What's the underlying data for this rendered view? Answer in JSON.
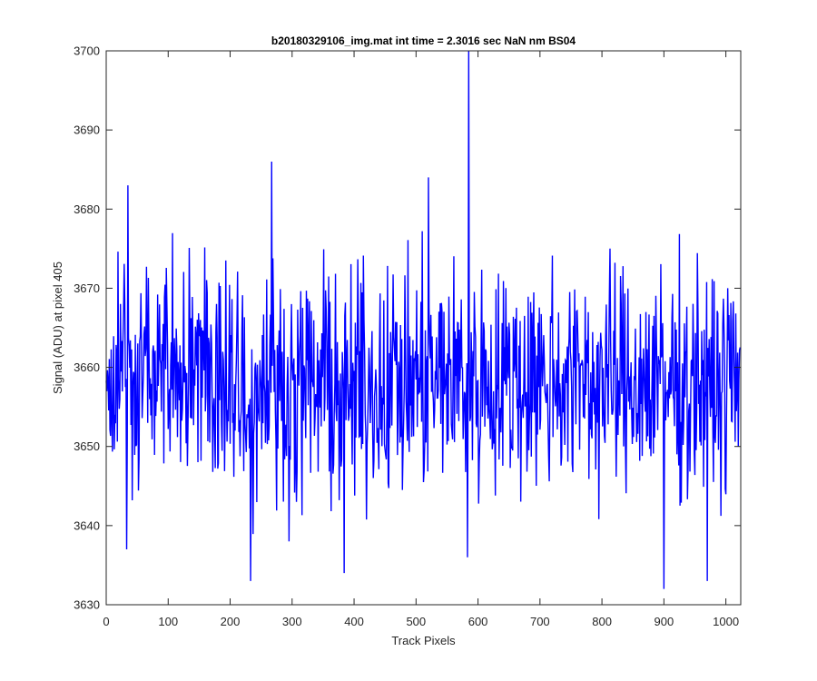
{
  "chart_data": {
    "type": "line",
    "title": "b20180329106_img.mat int time = 2.3016 sec  NaN nm BS04",
    "xlabel": "Track Pixels",
    "ylabel": "Signal (ADU) at pixel 405",
    "xlim": [
      0,
      1024
    ],
    "ylim": [
      3630,
      3700
    ],
    "xticks": [
      0,
      100,
      200,
      300,
      400,
      500,
      600,
      700,
      800,
      900,
      1000
    ],
    "yticks": [
      3630,
      3640,
      3650,
      3660,
      3670,
      3680,
      3690,
      3700
    ],
    "grid": false,
    "box": true,
    "series_color": "#0000ff",
    "series": [
      {
        "x": [
          0,
          10,
          20,
          30,
          40,
          50,
          60,
          70,
          80,
          90,
          100,
          110,
          120,
          130,
          140,
          150,
          160,
          170,
          180,
          190,
          200,
          210,
          220,
          230,
          240,
          250,
          260,
          270,
          280,
          290,
          300,
          310,
          320,
          330,
          340,
          350,
          360,
          370,
          380,
          390,
          400,
          410,
          420,
          430,
          440,
          450,
          460,
          470,
          480,
          490,
          500,
          510,
          520,
          530,
          540,
          550,
          560,
          570,
          580,
          590,
          600,
          610,
          620,
          630,
          640,
          650,
          660,
          670,
          680,
          690,
          700,
          710,
          720,
          730,
          740,
          750,
          760,
          770,
          780,
          790,
          800,
          810,
          820,
          830,
          840,
          850,
          860,
          870,
          880,
          890,
          900,
          910,
          920,
          930,
          940,
          950,
          960,
          970,
          980,
          990,
          1000,
          1010,
          1020
        ],
        "y": [
          3655,
          3650,
          3658,
          3676,
          3660,
          3658,
          3648,
          3665,
          3656,
          3651,
          3672,
          3658,
          3647,
          3662,
          3656,
          3654,
          3649,
          3662,
          3658,
          3656,
          3650,
          3663,
          3655,
          3652,
          3647,
          3656,
          3660,
          3657,
          3650,
          3654,
          3651,
          3649,
          3654,
          3656,
          3648,
          3658,
          3655,
          3653,
          3647,
          3654,
          3648,
          3657,
          3650,
          3655,
          3653,
          3656,
          3654,
          3660,
          3649,
          3655,
          3657,
          3654,
          3658,
          3652,
          3656,
          3660,
          3654,
          3659,
          3654,
          3657,
          3652,
          3659,
          3655,
          3651,
          3657,
          3653,
          3658,
          3653,
          3656,
          3661,
          3654,
          3652,
          3660,
          3658,
          3654,
          3656,
          3651,
          3662,
          3655,
          3652,
          3655,
          3658,
          3651,
          3656,
          3652,
          3655,
          3658,
          3652,
          3656,
          3657,
          3650,
          3653,
          3658,
          3654,
          3652,
          3656,
          3657,
          3653,
          3656,
          3652,
          3655,
          3658,
          3650
        ],
        "approximate_envelope": [
          3640,
          3680
        ],
        "notable_points": [
          {
            "x": 33,
            "y": 3637
          },
          {
            "x": 35,
            "y": 3683
          },
          {
            "x": 233,
            "y": 3633
          },
          {
            "x": 267,
            "y": 3686
          },
          {
            "x": 384,
            "y": 3634
          },
          {
            "x": 520,
            "y": 3684
          },
          {
            "x": 583,
            "y": 3636
          },
          {
            "x": 585,
            "y": 3700
          },
          {
            "x": 900,
            "y": 3632
          },
          {
            "x": 970,
            "y": 3633
          }
        ]
      }
    ]
  }
}
